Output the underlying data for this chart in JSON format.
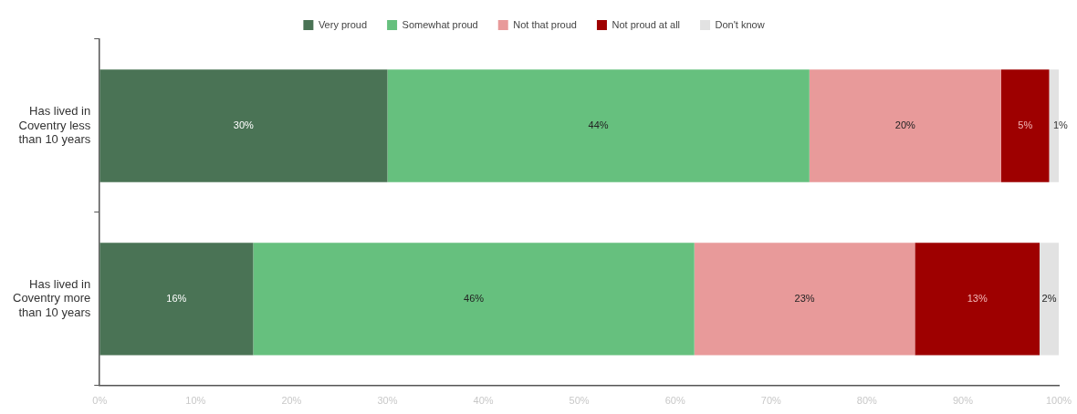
{
  "chart_data": {
    "type": "bar",
    "orientation": "horizontal",
    "stacked": true,
    "legend": "top",
    "categories": [
      "Has lived in Coventry less than 10 years",
      "Has lived in Coventry more than 10 years"
    ],
    "series": [
      {
        "name": "Very proud",
        "color": "#4a7355",
        "values": [
          30,
          16
        ],
        "value_labels": [
          "30%",
          "16%"
        ]
      },
      {
        "name": "Somewhat proud",
        "color": "#66c07e",
        "values": [
          44,
          46
        ],
        "value_labels": [
          "44%",
          "46%"
        ]
      },
      {
        "name": "Not that proud",
        "color": "#e89a9a",
        "values": [
          20,
          23
        ],
        "value_labels": [
          "20%",
          "23%"
        ]
      },
      {
        "name": "Not proud at all",
        "color": "#9e0000",
        "values": [
          5,
          13
        ],
        "value_labels": [
          "5%",
          "13%"
        ]
      },
      {
        "name": "Don't know",
        "color": "#e2e2e2",
        "values": [
          1,
          2
        ],
        "value_labels": [
          "1%",
          "2%"
        ]
      }
    ],
    "xlim": [
      0,
      100
    ],
    "xticks": [
      {
        "value": 0,
        "label": "0%"
      },
      {
        "value": 10,
        "label": "10%"
      },
      {
        "value": 20,
        "label": "20%"
      },
      {
        "value": 30,
        "label": "30%"
      },
      {
        "value": 40,
        "label": "40%"
      },
      {
        "value": 50,
        "label": "50%"
      },
      {
        "value": 60,
        "label": "60%"
      },
      {
        "value": 70,
        "label": "70%"
      },
      {
        "value": 80,
        "label": "80%"
      },
      {
        "value": 90,
        "label": "90%"
      },
      {
        "value": 100,
        "label": "100%"
      }
    ],
    "grid": false
  }
}
